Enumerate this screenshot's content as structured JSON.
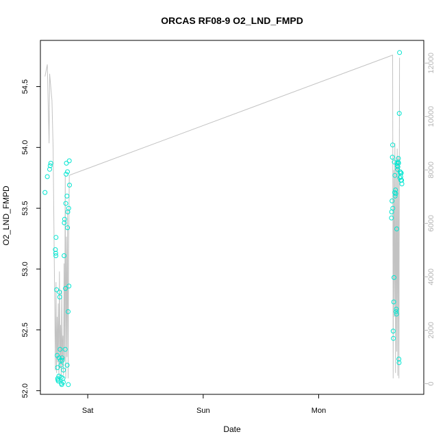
{
  "chart_data": {
    "type": "scatter",
    "title": "ORCAS RF08-9 O2_LND_FMPD",
    "xlabel": "Date",
    "ylabel": "O2_LND_FMPD",
    "x_ticks": [
      "Sat",
      "Sun",
      "Mon"
    ],
    "x_range_days": [
      -0.41,
      2.91
    ],
    "ylim": [
      51.97,
      54.88
    ],
    "y_ticks": [
      52.0,
      52.5,
      53.0,
      53.5,
      54.0,
      54.5
    ],
    "y2lim": [
      -400,
      12850
    ],
    "y2_ticks": [
      0,
      2000,
      4000,
      6000,
      8000,
      10000,
      12000
    ],
    "grid": false,
    "colors": {
      "points": "#00e5d0",
      "line": "#c2c2c2",
      "right_axis": "#b4b4b4"
    },
    "series": [
      {
        "type": "scatter",
        "axis": "left",
        "points": [
          [
            -0.37,
            53.63
          ],
          [
            -0.35,
            53.76
          ],
          [
            -0.33,
            53.82
          ],
          [
            -0.325,
            53.85
          ],
          [
            -0.32,
            53.87
          ],
          [
            -0.275,
            53.26
          ],
          [
            -0.28,
            53.16
          ],
          [
            -0.278,
            53.13
          ],
          [
            -0.276,
            53.11
          ],
          [
            -0.27,
            52.83
          ],
          [
            -0.265,
            52.29
          ],
          [
            -0.262,
            52.19
          ],
          [
            -0.26,
            52.1
          ],
          [
            -0.258,
            52.09
          ],
          [
            -0.255,
            52.08
          ],
          [
            -0.25,
            52.12
          ],
          [
            -0.248,
            52.27
          ],
          [
            -0.245,
            52.81
          ],
          [
            -0.243,
            52.77
          ],
          [
            -0.24,
            52.34
          ],
          [
            -0.235,
            52.25
          ],
          [
            -0.232,
            52.21
          ],
          [
            -0.23,
            52.11
          ],
          [
            -0.228,
            52.06
          ],
          [
            -0.225,
            52.05
          ],
          [
            -0.222,
            52.27
          ],
          [
            -0.22,
            52.25
          ],
          [
            -0.215,
            52.1
          ],
          [
            -0.212,
            52.07
          ],
          [
            -0.21,
            52.17
          ],
          [
            -0.205,
            53.11
          ],
          [
            -0.203,
            53.38
          ],
          [
            -0.2,
            53.41
          ],
          [
            -0.195,
            52.34
          ],
          [
            -0.193,
            52.84
          ],
          [
            -0.19,
            53.54
          ],
          [
            -0.187,
            53.78
          ],
          [
            -0.185,
            53.87
          ],
          [
            -0.18,
            53.6
          ],
          [
            -0.178,
            52.21
          ],
          [
            -0.175,
            53.34
          ],
          [
            -0.173,
            53.47
          ],
          [
            -0.17,
            52.65
          ],
          [
            -0.168,
            52.05
          ],
          [
            -0.165,
            53.5
          ],
          [
            -0.163,
            52.86
          ],
          [
            -0.16,
            53.89
          ],
          [
            -0.158,
            53.69
          ],
          [
            -0.176,
            53.8
          ],
          [
            2.63,
            53.42
          ],
          [
            2.632,
            53.47
          ],
          [
            2.635,
            53.56
          ],
          [
            2.638,
            53.92
          ],
          [
            2.64,
            54.02
          ],
          [
            2.642,
            53.5
          ],
          [
            2.645,
            52.49
          ],
          [
            2.647,
            52.43
          ],
          [
            2.65,
            52.73
          ],
          [
            2.652,
            52.93
          ],
          [
            2.655,
            53.88
          ],
          [
            2.658,
            53.63
          ],
          [
            2.66,
            53.77
          ],
          [
            2.662,
            53.6
          ],
          [
            2.665,
            53.65
          ],
          [
            2.667,
            53.62
          ],
          [
            2.67,
            52.65
          ],
          [
            2.672,
            52.67
          ],
          [
            2.674,
            52.63
          ],
          [
            2.676,
            53.33
          ],
          [
            2.678,
            53.87
          ],
          [
            2.68,
            53.85
          ],
          [
            2.683,
            53.82
          ],
          [
            2.686,
            53.84
          ],
          [
            2.688,
            53.88
          ],
          [
            2.69,
            53.91
          ],
          [
            2.692,
            53.87
          ],
          [
            2.694,
            52.26
          ],
          [
            2.696,
            52.23
          ],
          [
            2.698,
            54.28
          ],
          [
            2.7,
            54.78
          ],
          [
            2.703,
            53.75
          ],
          [
            2.705,
            53.8
          ],
          [
            2.708,
            53.79
          ],
          [
            2.71,
            53.76
          ],
          [
            2.712,
            53.73
          ],
          [
            2.715,
            53.79
          ],
          [
            2.718,
            53.73
          ],
          [
            2.72,
            53.7
          ]
        ]
      },
      {
        "type": "line",
        "axis": "right",
        "points": [
          [
            -0.37,
            11500
          ],
          [
            -0.35,
            11950
          ],
          [
            -0.335,
            9000
          ],
          [
            -0.33,
            11600
          ],
          [
            -0.31,
            10600
          ],
          [
            -0.3,
            8800
          ],
          [
            -0.28,
            500
          ],
          [
            -0.275,
            3800
          ],
          [
            -0.27,
            400
          ],
          [
            -0.265,
            2500
          ],
          [
            -0.26,
            800
          ],
          [
            -0.255,
            3000
          ],
          [
            -0.25,
            300
          ],
          [
            -0.245,
            4200
          ],
          [
            -0.24,
            600
          ],
          [
            -0.235,
            2200
          ],
          [
            -0.23,
            200
          ],
          [
            -0.225,
            3500
          ],
          [
            -0.22,
            700
          ],
          [
            -0.215,
            1800
          ],
          [
            -0.21,
            300
          ],
          [
            -0.205,
            4500
          ],
          [
            -0.2,
            900
          ],
          [
            -0.195,
            7800
          ],
          [
            -0.19,
            200
          ],
          [
            -0.185,
            5500
          ],
          [
            -0.18,
            1000
          ],
          [
            -0.175,
            6500
          ],
          [
            -0.17,
            200
          ],
          [
            -0.165,
            5000
          ],
          [
            -0.16,
            7800
          ],
          [
            2.64,
            12300
          ],
          [
            2.645,
            200
          ],
          [
            2.65,
            8000
          ],
          [
            2.655,
            2500
          ],
          [
            2.66,
            9000
          ],
          [
            2.665,
            400
          ],
          [
            2.67,
            8200
          ],
          [
            2.675,
            1200
          ],
          [
            2.68,
            8800
          ],
          [
            2.685,
            300
          ],
          [
            2.69,
            8500
          ],
          [
            2.695,
            200
          ],
          [
            2.7,
            12200
          ]
        ]
      }
    ]
  }
}
